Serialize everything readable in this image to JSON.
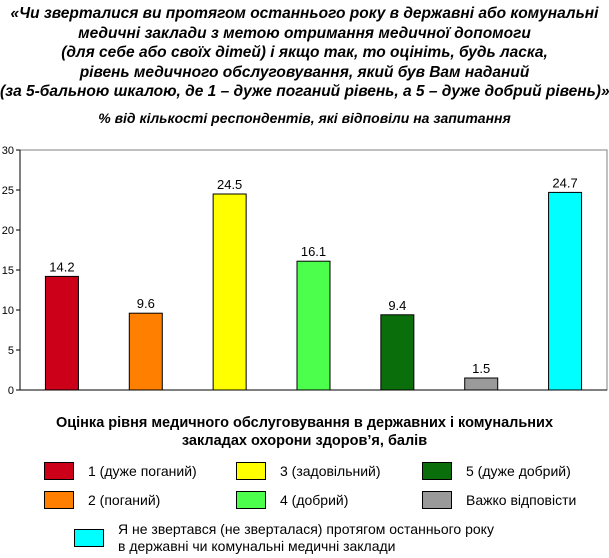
{
  "header": {
    "title_lines": [
      "«Чи зверталися ви протягом останнього року в державні або комунальні",
      "медичні заклади з метою отримання медичної допомоги",
      "(для себе або своїх дітей) і якщо так, то оцініть, будь ласка,",
      "рівень медичного обслуговування, який був Вам наданий",
      "(за 5-бальною шкалою, де 1 – дуже поганий рівень, а 5 – дуже добрий рівень)»,"
    ],
    "subtitle": "% від кількості респондентів, які відповіли на запитання"
  },
  "chart_data": {
    "type": "bar",
    "categories": [
      "1 (дуже поганий)",
      "2 (поганий)",
      "3 (задовільний)",
      "4 (добрий)",
      "5 (дуже добрий)",
      "Важко відповісти",
      "Я не звертався (не зверталася) протягом останнього року в державні чи комунальні медичні заклади"
    ],
    "values": [
      14.2,
      9.6,
      24.5,
      16.1,
      9.4,
      1.5,
      24.7
    ],
    "value_labels": [
      "14.2",
      "9.6",
      "24.5",
      "16.1",
      "9.4",
      "1.5",
      "24.7"
    ],
    "colors": [
      "#cc0019",
      "#ff7f00",
      "#ffff00",
      "#4dff4d",
      "#0a6e0a",
      "#9a9a9a",
      "#00ffff"
    ],
    "ylim": [
      0,
      30
    ],
    "yticks": [
      0,
      5,
      10,
      15,
      20,
      25,
      30
    ],
    "ytick_labels": [
      "0",
      "5",
      "10",
      "15",
      "20",
      "25",
      "30"
    ],
    "grid": false,
    "legend_placement": "bottom",
    "xlabel_lines": [
      "Оцінка рівня медичного обслуговування в державних і комунальних",
      "закладах охорони здоров’я, балів"
    ]
  },
  "legend": {
    "items": [
      {
        "label": "1 (дуже поганий)",
        "color": "#cc0019"
      },
      {
        "label": "3 (задовільний)",
        "color": "#ffff00"
      },
      {
        "label": "5 (дуже добрий)",
        "color": "#0a6e0a"
      },
      {
        "label": "2 (поганий)",
        "color": "#ff7f00"
      },
      {
        "label": "4 (добрий)",
        "color": "#4dff4d"
      },
      {
        "label": "Важко відповісти",
        "color": "#9a9a9a"
      }
    ],
    "wide_item": {
      "lines": [
        "Я не звертався (не зверталася) протягом останнього року",
        "в державні чи комунальні медичні заклади"
      ],
      "color": "#00ffff"
    }
  }
}
